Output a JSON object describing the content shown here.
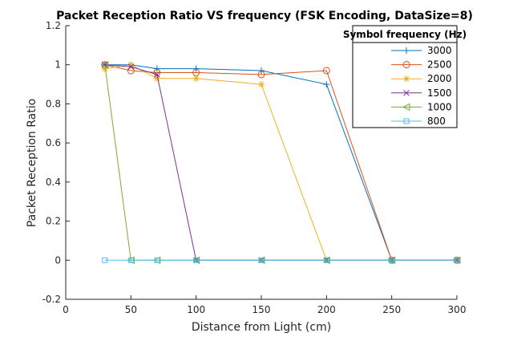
{
  "chart_data": {
    "type": "line",
    "title": "Packet Reception Ratio VS frequency (FSK Encoding, DataSize=8)",
    "xlabel": "Distance from Light (cm)",
    "ylabel": "Packet Reception Ratio",
    "xlim": [
      0,
      300
    ],
    "ylim": [
      -0.2,
      1.2
    ],
    "xticks": [
      0,
      50,
      100,
      150,
      200,
      250,
      300
    ],
    "yticks": [
      -0.2,
      0,
      0.2,
      0.4,
      0.6,
      0.8,
      1,
      1.2
    ],
    "xtick_labels": [
      "0",
      "50",
      "100",
      "150",
      "200",
      "250",
      "300"
    ],
    "ytick_labels": [
      "-0.2",
      "0",
      "0.2",
      "0.4",
      "0.6",
      "0.8",
      "1",
      "1.2"
    ],
    "grid": false,
    "legend": {
      "title": "Symbol frequency (Hz)",
      "placement": "top-right"
    },
    "series": [
      {
        "name": "3000",
        "marker": "plus",
        "color": "#0072BD",
        "x": [
          30,
          50,
          70,
          100,
          150,
          200,
          250,
          300
        ],
        "y": [
          1.0,
          1.0,
          0.98,
          0.98,
          0.97,
          0.9,
          0,
          0
        ]
      },
      {
        "name": "2500",
        "marker": "circle",
        "color": "#D95319",
        "x": [
          30,
          50,
          70,
          100,
          150,
          200,
          250,
          300
        ],
        "y": [
          1.0,
          0.97,
          0.96,
          0.96,
          0.95,
          0.97,
          0,
          0
        ]
      },
      {
        "name": "2000",
        "marker": "star",
        "color": "#EDB120",
        "x": [
          30,
          50,
          70,
          100,
          150,
          200,
          250,
          300
        ],
        "y": [
          0.98,
          1.0,
          0.93,
          0.93,
          0.9,
          0,
          0,
          0
        ]
      },
      {
        "name": "1500",
        "marker": "x",
        "color": "#7E2F8E",
        "x": [
          30,
          50,
          70,
          100,
          150,
          200,
          250,
          300
        ],
        "y": [
          1.0,
          0.99,
          0.95,
          0,
          0,
          0,
          0,
          0
        ]
      },
      {
        "name": "1000",
        "marker": "triangle-left",
        "color": "#77AC30",
        "x": [
          30,
          50,
          70,
          100,
          150,
          200,
          250,
          300
        ],
        "y": [
          1.0,
          0,
          0,
          0,
          0,
          0,
          0,
          0
        ]
      },
      {
        "name": "800",
        "marker": "square",
        "color": "#4DBEEE",
        "x": [
          30,
          50,
          70,
          100,
          150,
          200,
          250,
          300
        ],
        "y": [
          0,
          0,
          0,
          0,
          0,
          0,
          0,
          0
        ]
      }
    ]
  }
}
